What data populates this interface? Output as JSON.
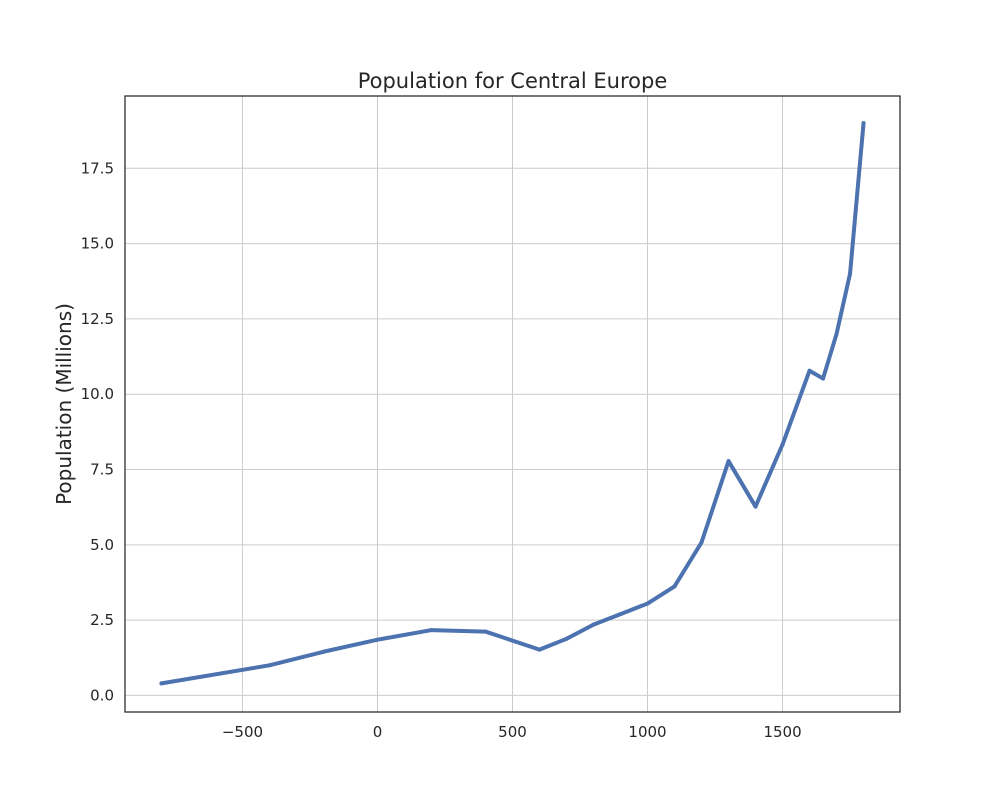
{
  "chart_data": {
    "type": "line",
    "title": "Population for Central Europe",
    "xlabel": "",
    "ylabel": "Population (Millions)",
    "xlim": [
      -935,
      1935
    ],
    "ylim": [
      -0.55,
      19.9
    ],
    "grid": true,
    "legend": "none",
    "x_ticks": [
      -500,
      0,
      500,
      1000,
      1500
    ],
    "x_tick_labels": [
      "−500",
      "0",
      "500",
      "1000",
      "1500"
    ],
    "y_ticks": [
      0,
      2.5,
      5,
      7.5,
      10,
      12.5,
      15,
      17.5
    ],
    "y_tick_labels": [
      "0.0",
      "2.5",
      "5.0",
      "7.5",
      "10.0",
      "12.5",
      "15.0",
      "17.5"
    ],
    "series": [
      {
        "color": "#4c72b0",
        "x": [
          -800,
          -400,
          -200,
          0,
          200,
          400,
          600,
          700,
          800,
          900,
          1000,
          1100,
          1200,
          1300,
          1400,
          1500,
          1600,
          1650,
          1700,
          1750,
          1800
        ],
        "y": [
          0.4,
          1.0,
          1.45,
          1.85,
          2.17,
          2.12,
          1.52,
          1.88,
          2.35,
          2.7,
          3.05,
          3.62,
          5.08,
          7.78,
          6.27,
          8.33,
          10.78,
          10.52,
          12.0,
          14.0,
          19.0
        ]
      }
    ]
  }
}
